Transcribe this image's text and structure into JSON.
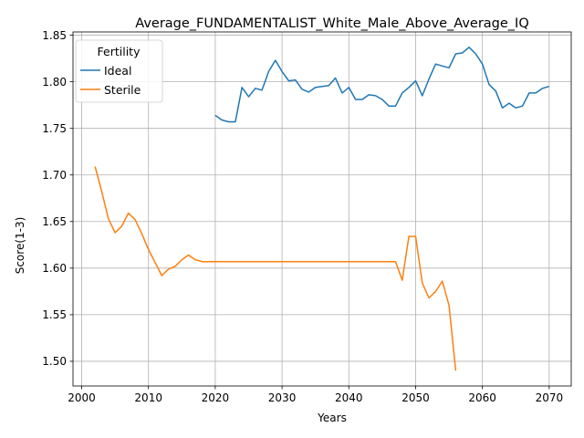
{
  "chart_data": {
    "type": "line",
    "title": "Average_FUNDAMENTALIST_White_Male_Above_Average_IQ",
    "xlabel": "Years",
    "ylabel": "Score(1-3)",
    "xlim": [
      1998.7,
      2073.3
    ],
    "ylim": [
      1.4735,
      1.8535
    ],
    "x_ticks": [
      2000,
      2010,
      2020,
      2030,
      2040,
      2050,
      2060,
      2070
    ],
    "y_ticks": [
      1.5,
      1.55,
      1.6,
      1.65,
      1.7,
      1.75,
      1.8,
      1.85
    ],
    "y_tick_labels": [
      "1.50",
      "1.55",
      "1.60",
      "1.65",
      "1.70",
      "1.75",
      "1.80",
      "1.85"
    ],
    "grid": true,
    "legend": {
      "title": "Fertility",
      "placement": "top-left"
    },
    "series": [
      {
        "name": "Ideal",
        "color": "#1f77b4",
        "x": [
          2020,
          2021,
          2022,
          2023,
          2024,
          2025,
          2026,
          2027,
          2028,
          2029,
          2030,
          2031,
          2032,
          2033,
          2034,
          2035,
          2036,
          2037,
          2038,
          2039,
          2040,
          2041,
          2042,
          2043,
          2044,
          2045,
          2046,
          2047,
          2048,
          2049,
          2050,
          2051,
          2052,
          2053,
          2054,
          2055,
          2056,
          2057,
          2058,
          2059,
          2060,
          2061,
          2062,
          2063,
          2064,
          2065,
          2066,
          2067,
          2068,
          2069,
          2070
        ],
        "values": [
          1.764,
          1.759,
          1.757,
          1.757,
          1.794,
          1.784,
          1.793,
          1.791,
          1.811,
          1.823,
          1.811,
          1.801,
          1.802,
          1.792,
          1.789,
          1.794,
          1.795,
          1.796,
          1.804,
          1.788,
          1.794,
          1.781,
          1.781,
          1.786,
          1.785,
          1.781,
          1.774,
          1.774,
          1.788,
          1.794,
          1.801,
          1.785,
          1.803,
          1.819,
          1.817,
          1.815,
          1.83,
          1.831,
          1.837,
          1.83,
          1.819,
          1.797,
          1.79,
          1.772,
          1.777,
          1.772,
          1.774,
          1.788,
          1.788,
          1.793,
          1.795
        ]
      },
      {
        "name": "Sterile",
        "color": "#ff7f0e",
        "x": [
          2002,
          2003,
          2004,
          2005,
          2006,
          2007,
          2008,
          2009,
          2010,
          2011,
          2012,
          2013,
          2014,
          2015,
          2016,
          2017,
          2018,
          2019,
          2020,
          2021,
          2022,
          2023,
          2024,
          2025,
          2026,
          2027,
          2028,
          2029,
          2030,
          2031,
          2032,
          2033,
          2034,
          2035,
          2036,
          2037,
          2038,
          2039,
          2040,
          2041,
          2042,
          2043,
          2044,
          2045,
          2046,
          2047,
          2048,
          2049,
          2050,
          2051,
          2052,
          2053,
          2054,
          2055,
          2056
        ],
        "values": [
          1.709,
          1.682,
          1.653,
          1.638,
          1.645,
          1.659,
          1.652,
          1.637,
          1.62,
          1.606,
          1.592,
          1.599,
          1.602,
          1.609,
          1.614,
          1.609,
          1.607,
          1.607,
          1.607,
          1.607,
          1.607,
          1.607,
          1.607,
          1.607,
          1.607,
          1.607,
          1.607,
          1.607,
          1.607,
          1.607,
          1.607,
          1.607,
          1.607,
          1.607,
          1.607,
          1.607,
          1.607,
          1.607,
          1.607,
          1.607,
          1.607,
          1.607,
          1.607,
          1.607,
          1.607,
          1.607,
          1.587,
          1.634,
          1.634,
          1.584,
          1.568,
          1.575,
          1.586,
          1.56,
          1.49
        ]
      }
    ]
  }
}
